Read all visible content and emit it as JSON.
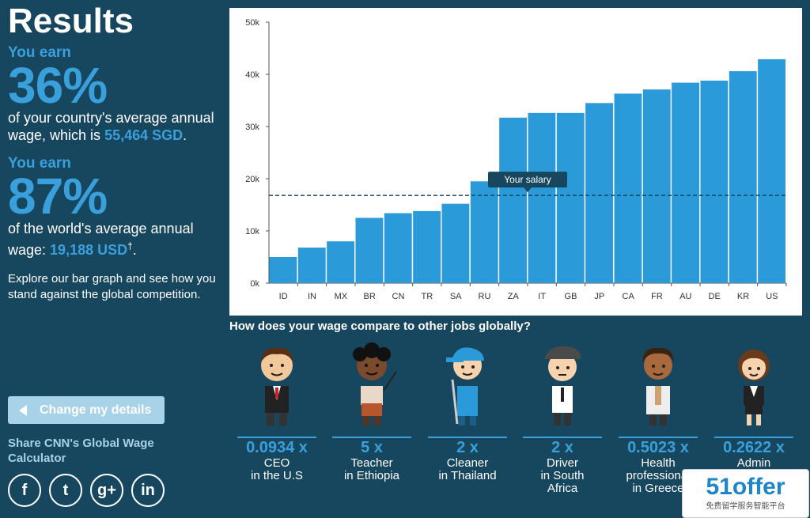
{
  "results": {
    "title": "Results",
    "earn1_label": "You earn",
    "earn1_pct": "36%",
    "earn1_desc_a": "of your country's average annual wage, which is ",
    "earn1_value": "55,464 SGD",
    "earn1_desc_b": ".",
    "earn2_label": "You earn",
    "earn2_pct": "87%",
    "earn2_desc_a": "of the world's average annual wage: ",
    "earn2_value": "19,188 USD",
    "earn2_mark": "†",
    "earn2_desc_b": ".",
    "explore": "Explore our bar graph and see how you stand against the global competition.",
    "change_button": "Change my details",
    "share": "Share CNN's Global Wage Calculator"
  },
  "social": [
    {
      "icon": "facebook-icon",
      "glyph": "f"
    },
    {
      "icon": "twitter-icon",
      "glyph": "t"
    },
    {
      "icon": "google-plus-icon",
      "glyph": "g+"
    },
    {
      "icon": "linkedin-icon",
      "glyph": "in"
    }
  ],
  "chart_data": {
    "type": "bar",
    "categories": [
      "ID",
      "IN",
      "MX",
      "BR",
      "CN",
      "TR",
      "SA",
      "RU",
      "ZA",
      "IT",
      "GB",
      "JP",
      "CA",
      "FR",
      "AU",
      "DE",
      "KR",
      "US"
    ],
    "values": [
      5000,
      6800,
      8000,
      12500,
      13400,
      13800,
      15200,
      19500,
      31700,
      32600,
      32600,
      34500,
      36300,
      37100,
      38400,
      38800,
      40600,
      42900
    ],
    "ylim": [
      0,
      50000
    ],
    "yticks": [
      "0k",
      "10k",
      "20k",
      "30k",
      "40k",
      "50k"
    ],
    "ytick_values": [
      0,
      10000,
      20000,
      30000,
      40000,
      50000
    ],
    "reference_line": {
      "label": "Your salary",
      "value": 16800
    },
    "bar_color": "#2a9ad8",
    "grid": true
  },
  "compare": {
    "title": "How does your wage compare to other jobs globally?",
    "jobs": [
      {
        "mult": "0.0934 x",
        "desc": "CEO\nin the U.S"
      },
      {
        "mult": "5 x",
        "desc": "Teacher\nin Ethiopia"
      },
      {
        "mult": "2 x",
        "desc": "Cleaner\nin Thailand"
      },
      {
        "mult": "2 x",
        "desc": "Driver\nin South\nAfrica"
      },
      {
        "mult": "0.5023 x",
        "desc": "Health\nprofessional\nin Greece"
      },
      {
        "mult": "0.2622 x",
        "desc": "Admin\n"
      }
    ]
  },
  "watermark": {
    "logo": "51offer",
    "sub": "免费留学服务智能平台"
  }
}
